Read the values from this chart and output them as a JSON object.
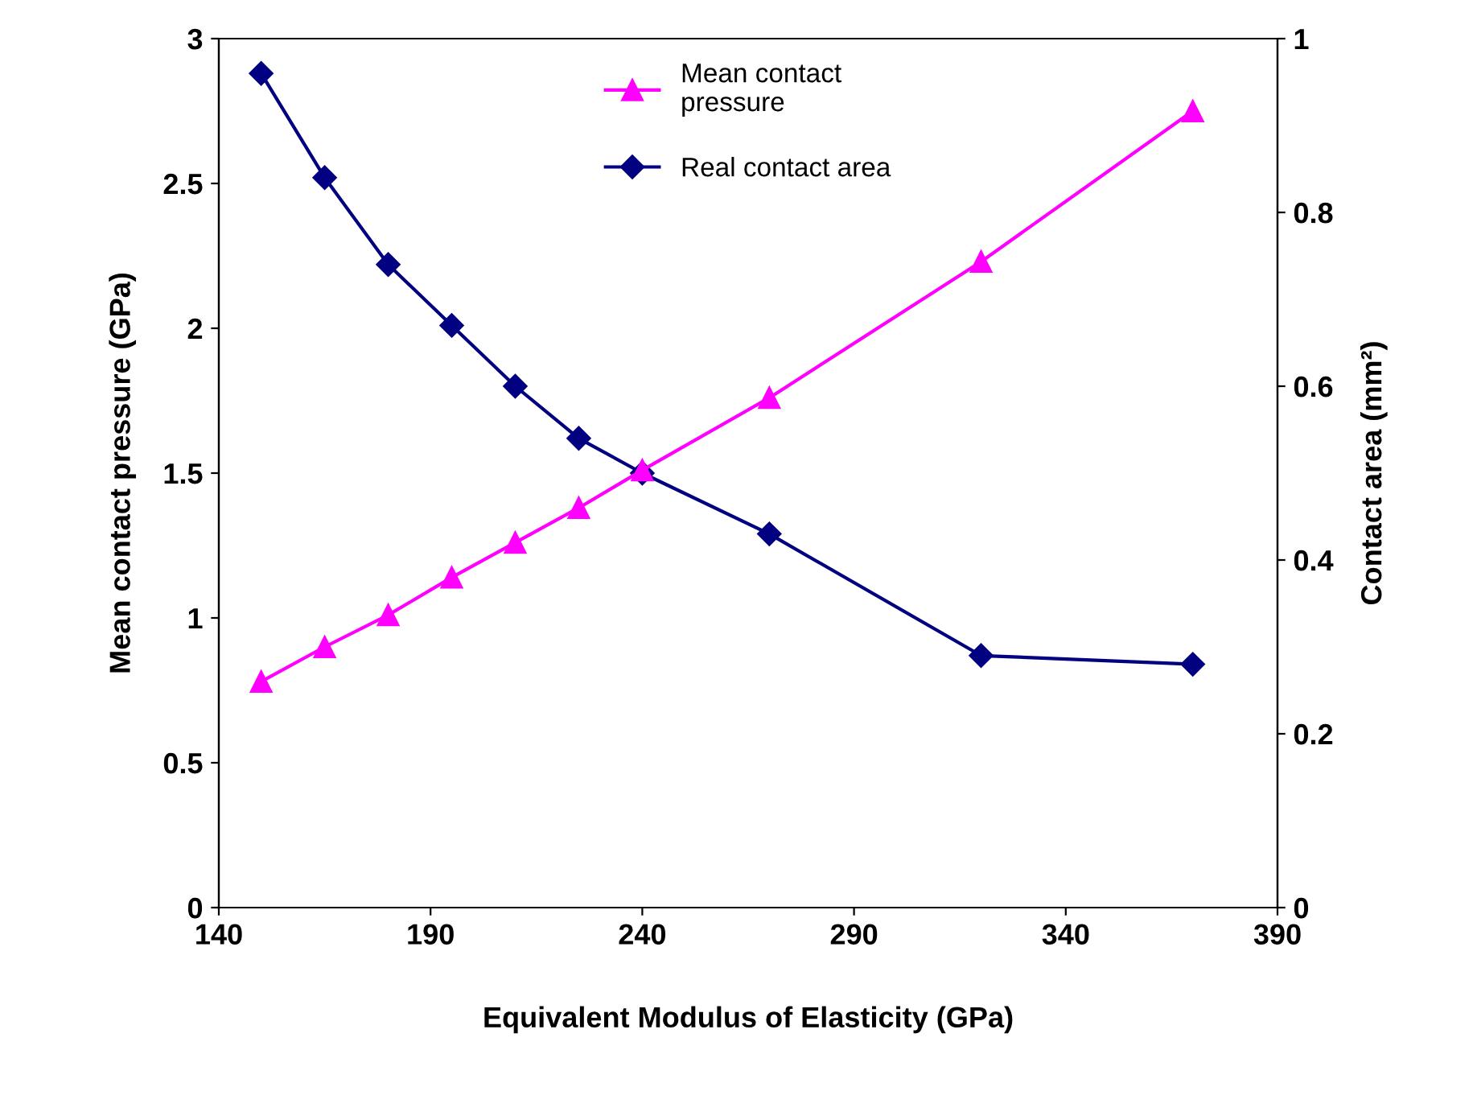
{
  "chart_data": {
    "type": "line",
    "xlabel": "Equivalent Modulus of Elasticity (GPa)",
    "ylabel": "Mean contact pressure (GPa)",
    "y2label": "Contact area (mm²)",
    "x": [
      150,
      165,
      180,
      195,
      210,
      225,
      240,
      270,
      320,
      370
    ],
    "series": [
      {
        "name": "Mean contact\npressure",
        "color": "#ff00ff",
        "marker": "triangle",
        "values": [
          0.78,
          0.9,
          1.01,
          1.14,
          1.26,
          1.38,
          1.51,
          1.76,
          2.23,
          2.75
        ]
      },
      {
        "name": "Real contact area",
        "color": "#000080",
        "marker": "diamond",
        "axis": "y2",
        "values": [
          0.96,
          0.84,
          0.74,
          0.67,
          0.6,
          0.54,
          0.5,
          0.43,
          0.29,
          0.28
        ]
      }
    ],
    "xlim": [
      140,
      390
    ],
    "xticks": [
      140,
      190,
      240,
      290,
      340,
      390
    ],
    "ylim": [
      0,
      3
    ],
    "yticks": [
      0,
      0.5,
      1,
      1.5,
      2,
      2.5,
      3
    ],
    "y2lim": [
      0,
      1
    ],
    "y2ticks": [
      0,
      0.2,
      0.4,
      0.6,
      0.8,
      1
    ],
    "grid": false,
    "legend": "top"
  }
}
